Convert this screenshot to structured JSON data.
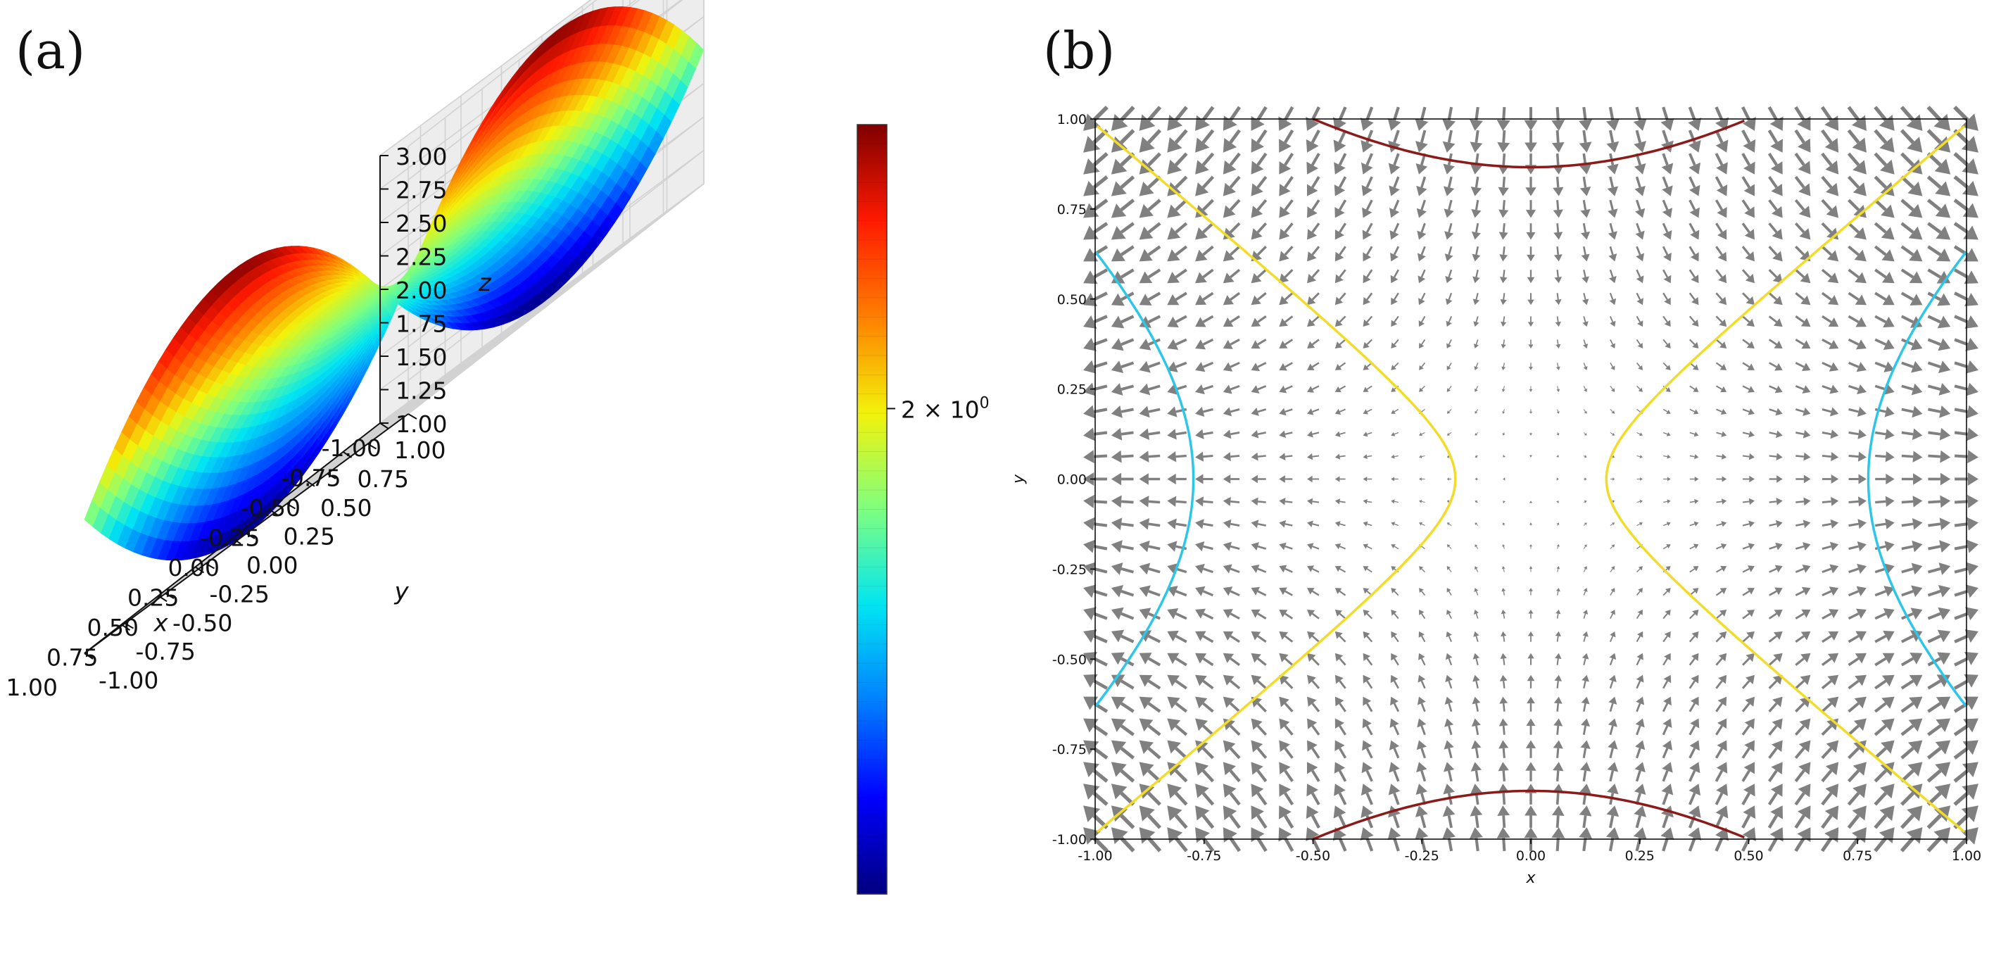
{
  "figure": {
    "panel_a_label": "(a)",
    "panel_b_label": "(b)"
  },
  "colormap": [
    "#00007f",
    "#0000ff",
    "#007fff",
    "#00e5f2",
    "#7fff7f",
    "#f2f20a",
    "#ff7f00",
    "#ff1a00",
    "#7f0000"
  ],
  "chart_data": [
    {
      "type": "surface3d",
      "panel": "(a)",
      "function": "z = x^2 - y^2 + 2",
      "x": {
        "label": "x",
        "range": [
          -1.0,
          1.0
        ],
        "ticks": [
          "-1.00",
          "-0.75",
          "-0.50",
          "-0.25",
          "0.00",
          "0.25",
          "0.50",
          "0.75",
          "1.00"
        ]
      },
      "y": {
        "label": "y",
        "range": [
          -1.0,
          1.0
        ],
        "ticks": [
          "-1.00",
          "-0.75",
          "-0.50",
          "-0.25",
          "0.00",
          "0.25",
          "0.50",
          "0.75",
          "1.00"
        ]
      },
      "z": {
        "label": "z",
        "range": [
          1.0,
          3.0
        ],
        "ticks": [
          "1.00",
          "1.25",
          "1.50",
          "1.75",
          "2.00",
          "2.25",
          "2.50",
          "2.75",
          "3.00"
        ]
      },
      "colorbar": {
        "scale": "log",
        "range": [
          1.0,
          3.0
        ],
        "tick_value": 2.0,
        "tick_label_base": "2 × 10",
        "tick_label_exp": "0"
      },
      "grid": true
    },
    {
      "type": "quiver-contour",
      "panel": "(b)",
      "function": "f = x^2 - y^2",
      "x": {
        "label": "x",
        "range": [
          -1.0,
          1.0
        ],
        "ticks": [
          "-1.00",
          "-0.75",
          "-0.50",
          "-0.25",
          "0.00",
          "0.25",
          "0.50",
          "0.75",
          "1.00"
        ]
      },
      "y": {
        "label": "y",
        "range": [
          -1.0,
          1.0
        ],
        "ticks": [
          "-1.00",
          "-0.75",
          "-0.50",
          "-0.25",
          "0.00",
          "0.25",
          "0.50",
          "0.75",
          "1.00"
        ]
      },
      "contours": [
        {
          "level": -0.75,
          "color": "#8b1a1a"
        },
        {
          "level": 0.03,
          "color": "#f2dc2a"
        },
        {
          "level": 0.6,
          "color": "#2cc7e8"
        }
      ],
      "quiver": {
        "field": "gradient",
        "color": "#808080",
        "grid": 33
      }
    }
  ]
}
